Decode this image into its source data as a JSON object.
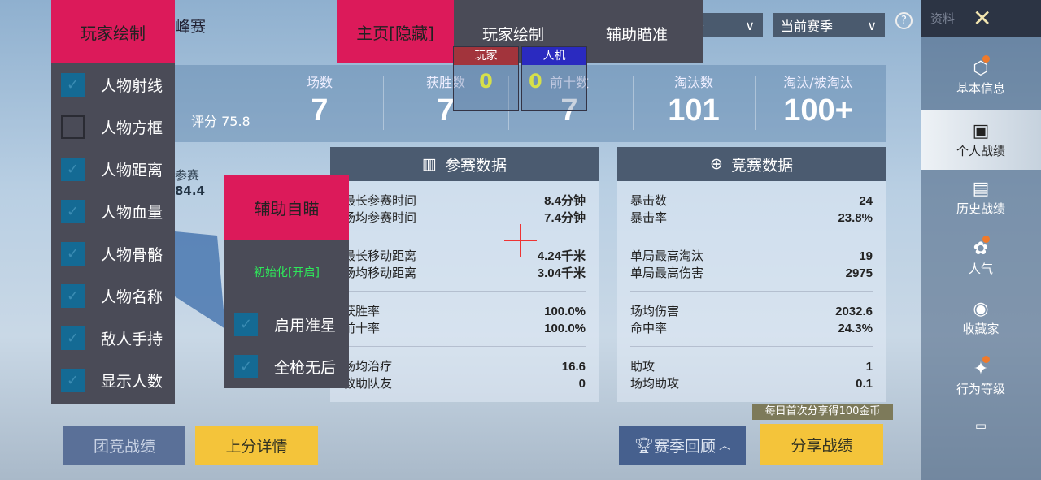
{
  "header": {
    "mode_partial": "峰赛",
    "dropdown1": "赛",
    "dropdown2": "当前赛季",
    "help_icon": "question-circle-icon"
  },
  "stats": {
    "rating": "评分 75.8",
    "items": [
      {
        "label": "场数",
        "value": "7"
      },
      {
        "label": "获胜数",
        "value": "7"
      },
      {
        "label": "前十数",
        "value": "7"
      },
      {
        "label": "淘汰数",
        "value": "101"
      },
      {
        "label": "淘汰/被淘汰",
        "value": "100+"
      }
    ]
  },
  "radar": {
    "label": "参赛",
    "value": "84.4"
  },
  "card_left": {
    "title": "参赛数据",
    "groups": [
      [
        [
          "最长参赛时间",
          "8.4分钟"
        ],
        [
          "场均参赛时间",
          "7.4分钟"
        ]
      ],
      [
        [
          "最长移动距离",
          "4.24千米"
        ],
        [
          "场均移动距离",
          "3.04千米"
        ]
      ],
      [
        [
          "获胜率",
          "100.0%"
        ],
        [
          "前十率",
          "100.0%"
        ]
      ],
      [
        [
          "场均治疗",
          "16.6"
        ],
        [
          "救助队友",
          "0"
        ]
      ]
    ]
  },
  "card_right": {
    "title": "竞赛数据",
    "groups": [
      [
        [
          "暴击数",
          "24"
        ],
        [
          "暴击率",
          "23.8%"
        ]
      ],
      [
        [
          "单局最高淘汰",
          "19"
        ],
        [
          "单局最高伤害",
          "2975"
        ]
      ],
      [
        [
          "场均伤害",
          "2032.6"
        ],
        [
          "命中率",
          "24.3%"
        ]
      ],
      [
        [
          "助攻",
          "1"
        ],
        [
          "场均助攻",
          "0.1"
        ]
      ]
    ]
  },
  "bottom": {
    "team": "团竞战绩",
    "rank": "上分详情",
    "season": "赛季回顾",
    "share": "分享战绩",
    "tooltip": "每日首次分享得100金币"
  },
  "sidebar": {
    "top": "资料",
    "items": [
      {
        "label": "基本信息",
        "dot": true
      },
      {
        "label": "个人战绩",
        "active": true
      },
      {
        "label": "历史战绩"
      },
      {
        "label": "人气",
        "dot": true
      },
      {
        "label": "收藏家"
      },
      {
        "label": "行为等级",
        "dot": true
      }
    ]
  },
  "overlay": {
    "home_tab": "主页[隐藏]",
    "tab_player": "玩家绘制",
    "tab_aim": "辅助瞄准",
    "counter": {
      "player_label": "玩家",
      "bot_label": "人机",
      "player_count": "0",
      "bot_count": "0"
    },
    "player_panel": {
      "title": "玩家绘制",
      "items": [
        {
          "label": "人物射线",
          "checked": true
        },
        {
          "label": "人物方框",
          "checked": false
        },
        {
          "label": "人物距离",
          "checked": true
        },
        {
          "label": "人物血量",
          "checked": true
        },
        {
          "label": "人物骨骼",
          "checked": true
        },
        {
          "label": "人物名称",
          "checked": true
        },
        {
          "label": "敌人手持",
          "checked": true
        },
        {
          "label": "显示人数",
          "checked": true
        }
      ]
    },
    "aim_panel": {
      "title": "辅助自瞄",
      "status": "初始化[开启]",
      "items": [
        {
          "label": "启用准星",
          "checked": true
        },
        {
          "label": "全枪无后",
          "checked": true
        }
      ]
    }
  },
  "colors": {
    "accent": "#dc1a5a",
    "panel": "#4a4b57",
    "checkbox": "#146a94",
    "status": "#2ee85a",
    "yellow": "#f4c43a"
  }
}
